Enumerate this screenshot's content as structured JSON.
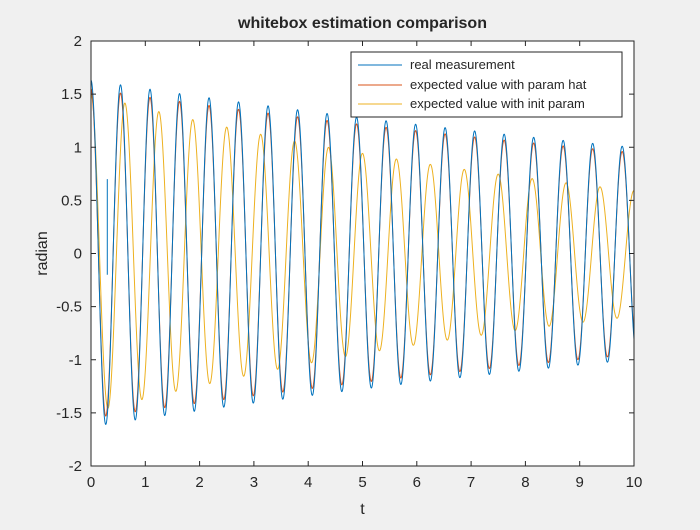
{
  "chart_data": {
    "type": "line",
    "title": "whitebox estimation comparison",
    "xlabel": "t",
    "ylabel": "radian",
    "xlim": [
      0,
      10
    ],
    "ylim": [
      -2,
      2
    ],
    "xticks": [
      "0",
      "1",
      "2",
      "3",
      "4",
      "5",
      "6",
      "7",
      "8",
      "9",
      "10"
    ],
    "yticks": [
      "-2",
      "-1.5",
      "-1",
      "-0.5",
      "0",
      "0.5",
      "1",
      "1.5",
      "2"
    ],
    "grid": false,
    "legend_position": "top-right",
    "series": [
      {
        "name": "real measurement",
        "color": "#0072BD",
        "model": {
          "amplitude": 1.63,
          "decay": 0.049,
          "frequency_hz": 1.84,
          "phase": 0
        },
        "notes_visible": "partial trace; starts near 1.63 at t=0, clear outlier spike near t=0.3 up to 0.7, fragmented after t≈5"
      },
      {
        "name": "expected value with param hat",
        "color": "#D95319",
        "model": {
          "amplitude": 1.55,
          "decay": 0.049,
          "frequency_hz": 1.84,
          "phase": 0
        }
      },
      {
        "name": "expected value with init param",
        "color": "#EDB120",
        "model": {
          "amplitude": 1.5,
          "decay": 0.093,
          "frequency_hz": 1.6,
          "phase": 0
        }
      }
    ]
  }
}
